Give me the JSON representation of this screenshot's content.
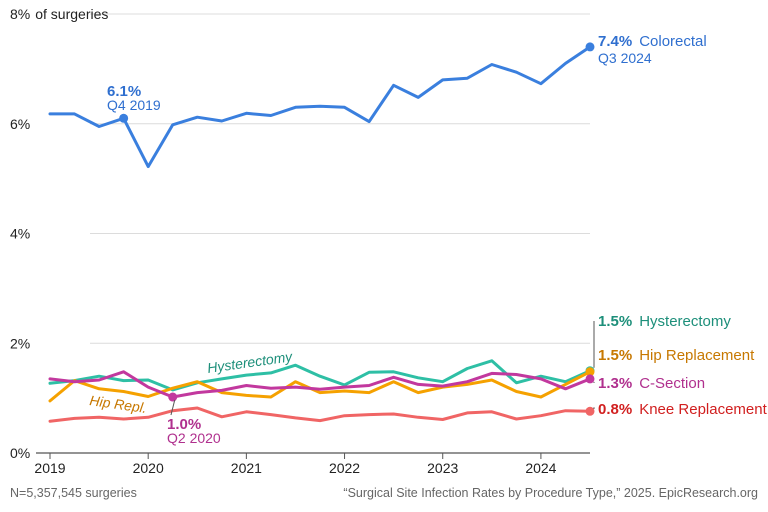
{
  "chart_data": {
    "type": "line",
    "y_axis_unit_label": "of surgeries",
    "ylim": [
      0,
      8
    ],
    "y_ticks": [
      {
        "value": 0,
        "label": "0%"
      },
      {
        "value": 2,
        "label": "2%"
      },
      {
        "value": 4,
        "label": "4%"
      },
      {
        "value": 6,
        "label": "6%"
      },
      {
        "value": 8,
        "label": "8%"
      }
    ],
    "x_ticks": [
      {
        "value": 2019,
        "label": "2019"
      },
      {
        "value": 2020,
        "label": "2020"
      },
      {
        "value": 2021,
        "label": "2021"
      },
      {
        "value": 2022,
        "label": "2022"
      },
      {
        "value": 2023,
        "label": "2023"
      },
      {
        "value": 2024,
        "label": "2024"
      }
    ],
    "x": [
      2019.0,
      2019.25,
      2019.5,
      2019.75,
      2020.0,
      2020.25,
      2020.5,
      2020.75,
      2021.0,
      2021.25,
      2021.5,
      2021.75,
      2022.0,
      2022.25,
      2022.5,
      2022.75,
      2023.0,
      2023.25,
      2023.5,
      2023.75,
      2024.0,
      2024.25,
      2024.5
    ],
    "series": [
      {
        "name": "Colorectal",
        "color": "#3a7fde",
        "values": [
          6.18,
          6.18,
          5.95,
          6.1,
          5.22,
          5.98,
          6.12,
          6.05,
          6.19,
          6.15,
          6.3,
          6.32,
          6.3,
          6.04,
          6.7,
          6.48,
          6.8,
          6.83,
          7.08,
          6.94,
          6.73,
          7.1,
          7.4
        ]
      },
      {
        "name": "Hysterectomy",
        "color": "#2ebfa5",
        "values": [
          1.27,
          1.32,
          1.4,
          1.32,
          1.33,
          1.15,
          1.28,
          1.35,
          1.42,
          1.46,
          1.6,
          1.4,
          1.24,
          1.47,
          1.48,
          1.37,
          1.3,
          1.54,
          1.68,
          1.28,
          1.4,
          1.3,
          1.5
        ]
      },
      {
        "name": "Hip Replacement",
        "color": "#f5a100",
        "values": [
          0.95,
          1.32,
          1.17,
          1.12,
          1.03,
          1.18,
          1.3,
          1.1,
          1.05,
          1.02,
          1.3,
          1.1,
          1.13,
          1.1,
          1.3,
          1.1,
          1.2,
          1.25,
          1.33,
          1.12,
          1.02,
          1.25,
          1.48
        ]
      },
      {
        "name": "C-Section",
        "color": "#c2389e",
        "values": [
          1.35,
          1.3,
          1.33,
          1.48,
          1.2,
          1.02,
          1.1,
          1.14,
          1.23,
          1.18,
          1.2,
          1.16,
          1.2,
          1.23,
          1.38,
          1.25,
          1.22,
          1.3,
          1.45,
          1.43,
          1.35,
          1.17,
          1.35
        ]
      },
      {
        "name": "Knee Replacement",
        "color": "#f06565",
        "values": [
          0.58,
          0.63,
          0.65,
          0.62,
          0.65,
          0.77,
          0.82,
          0.66,
          0.75,
          0.7,
          0.64,
          0.59,
          0.68,
          0.7,
          0.71,
          0.65,
          0.61,
          0.73,
          0.75,
          0.62,
          0.68,
          0.77,
          0.76
        ]
      }
    ],
    "end_labels": [
      {
        "series": "Colorectal",
        "value_label": "7.4%",
        "name_label": "Colorectal",
        "sub_label": "Q3 2024",
        "text_color": "#2f6fcf"
      },
      {
        "series": "Hysterectomy",
        "value_label": "1.5%",
        "name_label": "Hysterectomy",
        "text_color": "#1d8f7a"
      },
      {
        "series": "Hip Replacement",
        "value_label": "1.5%",
        "name_label": "Hip Replacement",
        "text_color": "#c77800"
      },
      {
        "series": "C-Section",
        "value_label": "1.3%",
        "name_label": "C-Section",
        "text_color": "#b0308e"
      },
      {
        "series": "Knee Replacement",
        "value_label": "0.8%",
        "name_label": "Knee Replacement",
        "text_color": "#d11f1f"
      }
    ],
    "point_annotations": [
      {
        "series": "Colorectal",
        "x": 2019.75,
        "value_label": "6.1%",
        "sub_label": "Q4 2019",
        "text_color": "#2f6fcf"
      },
      {
        "series": "C-Section",
        "x": 2020.25,
        "value_label": "1.0%",
        "sub_label": "Q2 2020",
        "text_color": "#b0308e"
      }
    ],
    "inline_labels": [
      {
        "series": "Hysterectomy",
        "text": "Hysterectomy",
        "text_color": "#1d8f7a",
        "at_x": 2020.6,
        "at_value": 1.4
      },
      {
        "series": "Hip Replacement",
        "text": "Hip Repl.",
        "text_color": "#c77800",
        "at_x": 2019.45,
        "at_value": 1.2
      }
    ]
  },
  "footer": {
    "sample": "N=5,357,545 surgeries",
    "source": "“Surgical Site Infection Rates by Procedure Type,” 2025. EpicResearch.org"
  }
}
